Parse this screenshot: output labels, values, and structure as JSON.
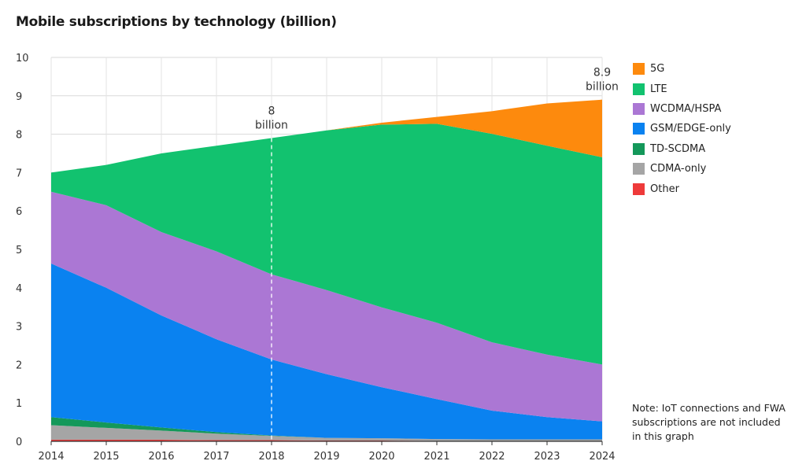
{
  "chart_data": {
    "type": "area",
    "stacked": true,
    "title": "Mobile subscriptions by technology (billion)",
    "xlabel": "",
    "ylabel": "",
    "x": [
      2014,
      2015,
      2016,
      2017,
      2018,
      2019,
      2020,
      2021,
      2022,
      2023,
      2024
    ],
    "ylim": [
      0,
      10
    ],
    "yticks": [
      0,
      1,
      2,
      3,
      4,
      5,
      6,
      7,
      8,
      9,
      10
    ],
    "grid": true,
    "legend_position": "right",
    "series": [
      {
        "name": "Other",
        "color": "#ee3a3a",
        "values": [
          0.04,
          0.04,
          0.04,
          0.03,
          0.03,
          0.02,
          0.02,
          0.01,
          0.01,
          0.01,
          0.01
        ]
      },
      {
        "name": "CDMA-only",
        "color": "#a5a5a5",
        "values": [
          0.38,
          0.31,
          0.24,
          0.17,
          0.11,
          0.07,
          0.06,
          0.05,
          0.04,
          0.04,
          0.04
        ]
      },
      {
        "name": "TD-SCDMA",
        "color": "#14985a",
        "values": [
          0.21,
          0.14,
          0.08,
          0.04,
          0.01,
          0.0,
          0.0,
          0.0,
          0.0,
          0.0,
          0.0
        ]
      },
      {
        "name": "GSM/EDGE-only",
        "color": "#0a82f0",
        "values": [
          4.0,
          3.51,
          2.92,
          2.42,
          1.98,
          1.66,
          1.33,
          1.04,
          0.75,
          0.58,
          0.47
        ]
      },
      {
        "name": "WCDMA/HSPA",
        "color": "#ab77d4",
        "values": [
          1.87,
          2.15,
          2.17,
          2.29,
          2.22,
          2.19,
          2.08,
          1.99,
          1.78,
          1.63,
          1.48
        ]
      },
      {
        "name": "LTE",
        "color": "#12c26f",
        "values": [
          0.5,
          1.05,
          2.05,
          2.75,
          3.55,
          4.16,
          4.76,
          5.18,
          5.43,
          5.44,
          5.4
        ]
      },
      {
        "name": "5G",
        "color": "#fd8a0d",
        "values": [
          0.0,
          0.0,
          0.0,
          0.0,
          0.0,
          0.0,
          0.05,
          0.18,
          0.59,
          1.1,
          1.5
        ]
      }
    ],
    "annotations": [
      {
        "x": 2018,
        "y": 7.9,
        "line1": "8",
        "line2": "billion",
        "dashed_line": true
      },
      {
        "x": 2024,
        "y": 8.9,
        "line1": "8.9",
        "line2": "billion",
        "dashed_line": false
      }
    ],
    "note": "Note: IoT connections and FWA subscriptions are not included in this graph"
  }
}
